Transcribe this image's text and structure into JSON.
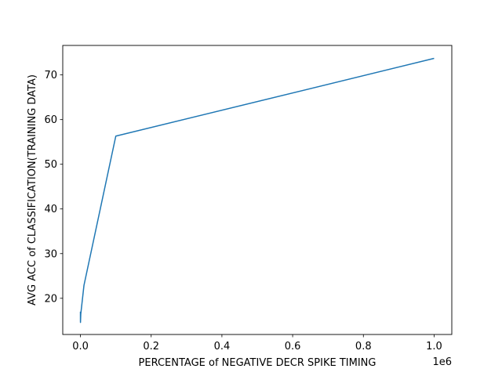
{
  "chart_data": {
    "type": "line",
    "title": "",
    "xlabel": "PERCENTAGE of NEGATIVE DECR SPIKE TIMING",
    "ylabel": "AVG ACC of CLASSIFICATION(TRAINING DATA)",
    "x_offset_label": "1e6",
    "x_scale": 1000000,
    "xlim": [
      -50000,
      1050000
    ],
    "ylim": [
      11.9,
      76.6
    ],
    "x_ticks": [
      0,
      200000,
      400000,
      600000,
      800000,
      1000000
    ],
    "x_tick_labels": [
      "0.0",
      "0.2",
      "0.4",
      "0.6",
      "0.8",
      "1.0"
    ],
    "y_ticks": [
      20,
      30,
      40,
      50,
      60,
      70
    ],
    "y_tick_labels": [
      "20",
      "30",
      "40",
      "50",
      "60",
      "70"
    ],
    "grid": false,
    "series": [
      {
        "color": "#1f77b4",
        "x": [
          1,
          10,
          100,
          1000,
          10000,
          100000,
          1000000
        ],
        "y": [
          17.0,
          15.2,
          14.6,
          16.5,
          22.9,
          56.3,
          73.7
        ]
      }
    ]
  }
}
